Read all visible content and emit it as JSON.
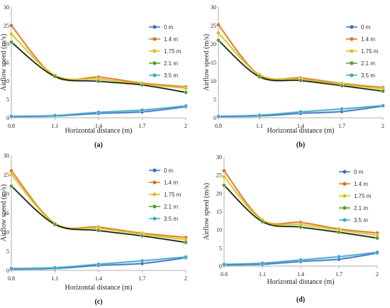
{
  "chart_data": [
    {
      "type": "line",
      "panel_label": "(a)",
      "xlabel": "Horizontal distance (m)",
      "ylabel": "Airflow speed (m/s)",
      "categories": [
        "0.8",
        "1.1",
        "1.4",
        "1.7",
        "2"
      ],
      "ylim": [
        0,
        30
      ],
      "yticks": [
        0,
        5,
        10,
        15,
        20,
        25,
        30
      ],
      "legend_position": "right",
      "series": [
        {
          "name": "0 m",
          "color": "#3a6fc4",
          "values": [
            0.3,
            0.5,
            1.2,
            1.6,
            3.0
          ]
        },
        {
          "name": "1.4 m",
          "color": "#d9731f",
          "values": [
            25.0,
            11.2,
            11.0,
            9.4,
            8.4
          ]
        },
        {
          "name": "1.75 m",
          "color": "#d6c21a",
          "values": [
            22.7,
            11.5,
            10.5,
            9.2,
            8.0
          ]
        },
        {
          "name": "2.1 m",
          "color": "#5a9a2f",
          "values": [
            20.5,
            11.2,
            9.9,
            8.9,
            6.9
          ]
        },
        {
          "name": "3.5 m",
          "color": "#3fa7c6",
          "values": [
            0.4,
            0.6,
            1.5,
            2.1,
            3.2
          ]
        }
      ]
    },
    {
      "type": "line",
      "panel_label": "(b)",
      "xlabel": "Horizontal distance (m)",
      "ylabel": "Airflow speed (m/s)",
      "categories": [
        "0.8",
        "1.1",
        "1.4",
        "1.7",
        "2"
      ],
      "ylim": [
        0,
        30
      ],
      "yticks": [
        0,
        5,
        10,
        15,
        20,
        25,
        30
      ],
      "legend_position": "right",
      "series": [
        {
          "name": "0 m",
          "color": "#3a6fc4",
          "values": [
            0.3,
            0.5,
            1.2,
            1.7,
            3.2
          ]
        },
        {
          "name": "1.4 m",
          "color": "#d9731f",
          "values": [
            25.2,
            11.5,
            10.8,
            9.3,
            8.2
          ]
        },
        {
          "name": "1.75 m",
          "color": "#d6c21a",
          "values": [
            23.0,
            11.7,
            10.5,
            9.1,
            7.8
          ]
        },
        {
          "name": "2.1 m",
          "color": "#5a9a2f",
          "values": [
            21.0,
            11.1,
            10.1,
            8.7,
            7.2
          ]
        },
        {
          "name": "3.5 m",
          "color": "#3fa7c6",
          "values": [
            0.4,
            0.7,
            1.6,
            2.4,
            3.3
          ]
        }
      ]
    },
    {
      "type": "line",
      "panel_label": "(c)",
      "xlabel": "Horizontal distance (m)",
      "ylabel": "Airflow speed (m/s)",
      "categories": [
        "0.8",
        "1.1",
        "1.4",
        "1.7",
        "2"
      ],
      "ylim": [
        0,
        30
      ],
      "yticks": [
        0,
        5,
        10,
        15,
        20,
        25,
        30
      ],
      "legend_position": "right",
      "series": [
        {
          "name": "0 m",
          "color": "#3a6fc4",
          "values": [
            0.3,
            0.5,
            1.3,
            1.8,
            3.3
          ]
        },
        {
          "name": "1.4 m",
          "color": "#d9731f",
          "values": [
            26.0,
            12.2,
            11.3,
            9.7,
            8.6
          ]
        },
        {
          "name": "1.75 m",
          "color": "#d6c21a",
          "values": [
            25.0,
            12.2,
            11.0,
            9.5,
            8.0
          ]
        },
        {
          "name": "2.1 m",
          "color": "#5a9a2f",
          "values": [
            22.0,
            12.0,
            10.4,
            9.0,
            7.3
          ]
        },
        {
          "name": "3.5 m",
          "color": "#3fa7c6",
          "values": [
            0.5,
            0.7,
            1.6,
            2.5,
            3.5
          ]
        }
      ]
    },
    {
      "type": "line",
      "panel_label": "(d)",
      "xlabel": "Horizontal distance (m)",
      "ylabel": "Airflow speed (m/s)",
      "categories": [
        "0.8",
        "1.1",
        "1.4",
        "1.7",
        "2"
      ],
      "ylim": [
        0,
        30
      ],
      "yticks": [
        0,
        5,
        10,
        15,
        20,
        25,
        30
      ],
      "legend_position": "right",
      "series": [
        {
          "name": "0 m",
          "color": "#3a6fc4",
          "values": [
            0.3,
            0.5,
            1.3,
            1.9,
            3.6
          ]
        },
        {
          "name": "1.4 m",
          "color": "#d9731f",
          "values": [
            26.2,
            12.7,
            12.0,
            10.2,
            9.1
          ]
        },
        {
          "name": "1.75 m",
          "color": "#d6c21a",
          "values": [
            24.5,
            12.6,
            11.4,
            9.9,
            8.5
          ]
        },
        {
          "name": "2.1 m",
          "color": "#5a9a2f",
          "values": [
            22.2,
            12.2,
            10.7,
            9.3,
            7.7
          ]
        },
        {
          "name": "3.5 m",
          "color": "#3fa7c6",
          "values": [
            0.5,
            0.8,
            1.7,
            2.6,
            3.8
          ]
        }
      ]
    }
  ]
}
